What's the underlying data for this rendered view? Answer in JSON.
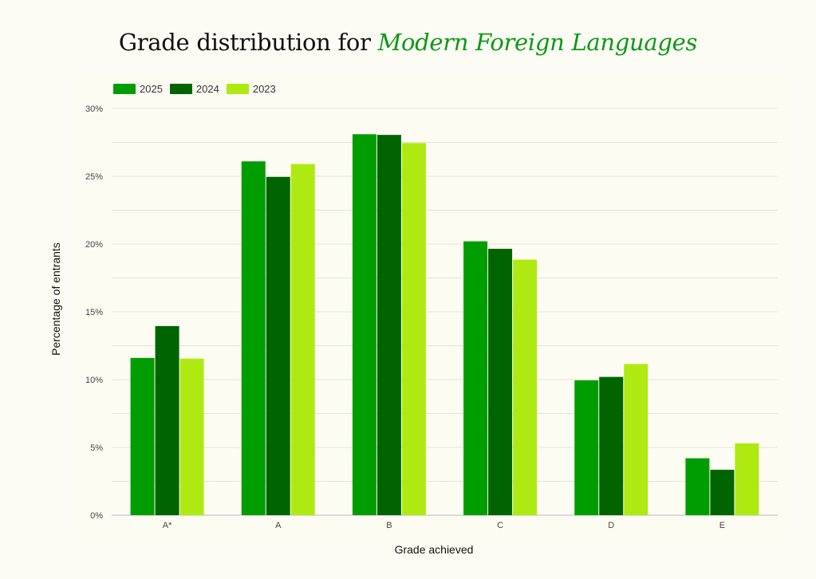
{
  "title": {
    "prefix": "Grade distribution for ",
    "subject": "Modern Foreign Languages",
    "accent_color": "#0b9a16"
  },
  "chart_data": {
    "type": "bar",
    "categories": [
      "A*",
      "A",
      "B",
      "C",
      "D",
      "E"
    ],
    "series": [
      {
        "name": "2025",
        "color": "#009d00",
        "values": [
          11.6,
          26.1,
          28.1,
          20.2,
          9.95,
          4.2
        ]
      },
      {
        "name": "2024",
        "color": "#006400",
        "values": [
          13.95,
          24.95,
          28.05,
          19.65,
          10.2,
          3.35
        ]
      },
      {
        "name": "2023",
        "color": "#aeea12",
        "values": [
          11.55,
          25.9,
          27.45,
          18.85,
          11.15,
          5.3
        ]
      }
    ],
    "xlabel": "Grade achieved",
    "ylabel": "Percentage of entrants",
    "ylim": [
      0,
      30
    ],
    "yticks": [
      "0%",
      "5%",
      "10%",
      "15%",
      "20%",
      "25%",
      "30%"
    ],
    "ytick_values": [
      0,
      5,
      10,
      15,
      20,
      25,
      30
    ],
    "grid": true,
    "legend_position": "top-left"
  }
}
